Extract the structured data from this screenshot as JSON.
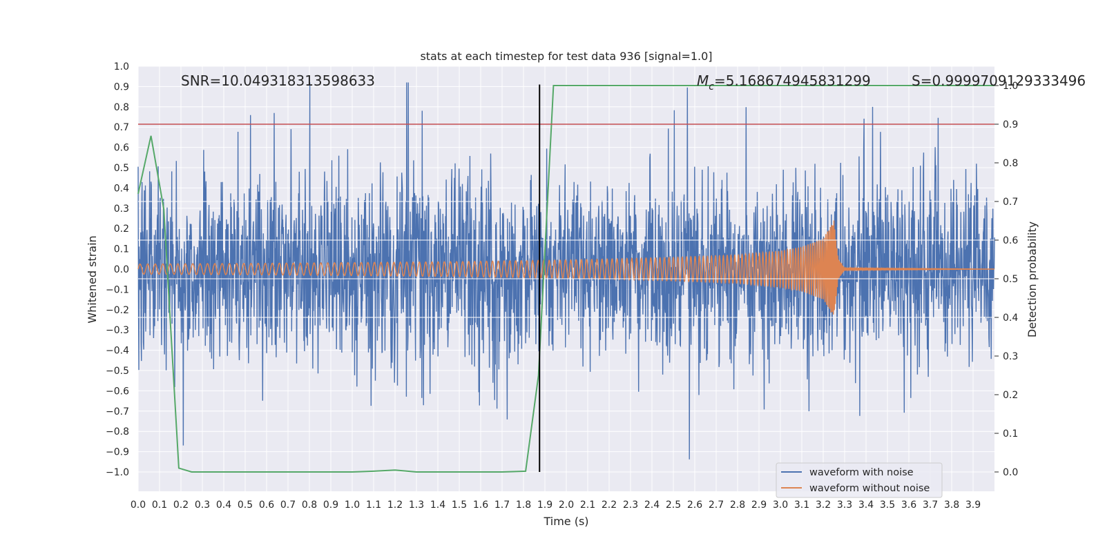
{
  "chart_data": {
    "type": "line",
    "title": "stats at each timestep for test data 936 [signal=1.0]",
    "xlabel": "Time (s)",
    "ylabel": "Whitened strain",
    "y2label": "Detection probability",
    "xlim": [
      0.0,
      4.0
    ],
    "ylim": [
      -1.09,
      1.0
    ],
    "y2lim": [
      -0.05,
      1.0
    ],
    "xticks": [
      "0.0",
      "0.1",
      "0.2",
      "0.3",
      "0.4",
      "0.5",
      "0.6",
      "0.7",
      "0.8",
      "0.9",
      "1.0",
      "1.1",
      "1.2",
      "1.3",
      "1.4",
      "1.5",
      "1.6",
      "1.7",
      "1.8",
      "1.9",
      "2.0",
      "2.1",
      "2.2",
      "2.3",
      "2.4",
      "2.5",
      "2.6",
      "2.7",
      "2.8",
      "2.9",
      "3.0",
      "3.1",
      "3.2",
      "3.3",
      "3.4",
      "3.5",
      "3.6",
      "3.7",
      "3.8",
      "3.9"
    ],
    "yticks": [
      "1.0",
      "0.9",
      "0.8",
      "0.7",
      "0.6",
      "0.5",
      "0.4",
      "0.3",
      "0.2",
      "0.1",
      "0.0",
      "−0.1",
      "−0.2",
      "−0.3",
      "−0.4",
      "−0.5",
      "−0.6",
      "−0.7",
      "−0.8",
      "−0.9",
      "−1.0"
    ],
    "y2ticks": [
      "1.0",
      "0.9",
      "0.8",
      "0.7",
      "0.6",
      "0.5",
      "0.4",
      "0.3",
      "0.2",
      "0.1",
      "0.0"
    ],
    "grid": true,
    "legend_position": "bottom-right",
    "annotations": {
      "snr": "SNR=10.049318313598633",
      "mc_symbol": "M",
      "mc_sub": "c",
      "mc_value": "=5.168674945831299",
      "s": "S=0.9999709129333496"
    },
    "colors": {
      "noisy": "#4c72b0",
      "clean": "#dd8452",
      "prob": "#55a868",
      "threshold": "#c44e52",
      "vline": "#000000",
      "background": "#eaeaf2",
      "grid": "#ffffff"
    },
    "series": [
      {
        "name": "waveform with noise",
        "axis": "left",
        "description": "noisy whitened strain, roughly within -0.5..0.5 with spikes to ~0.9 and down to -1.0"
      },
      {
        "name": "waveform without noise",
        "axis": "left",
        "description": "chirp signal with growing amplitude, merger at ~3.26 s, then ringdown to 0",
        "envelope_x": [
          0.0,
          0.5,
          1.0,
          1.5,
          2.0,
          2.5,
          2.8,
          3.0,
          3.1,
          3.2,
          3.25,
          3.27,
          3.3,
          4.0
        ],
        "envelope_y": [
          0.025,
          0.028,
          0.032,
          0.037,
          0.045,
          0.058,
          0.07,
          0.09,
          0.11,
          0.15,
          0.24,
          0.05,
          0.005,
          0.0
        ]
      },
      {
        "name": "detection probability",
        "axis": "right",
        "x": [
          0.0,
          0.06,
          0.12,
          0.19,
          0.25,
          0.5,
          1.0,
          1.1,
          1.2,
          1.3,
          1.5,
          1.7,
          1.81,
          1.87,
          1.94,
          4.0
        ],
        "y": [
          0.72,
          0.87,
          0.68,
          0.01,
          0.0,
          0.0,
          0.0,
          0.002,
          0.005,
          0.0,
          0.0,
          0.0,
          0.002,
          0.25,
          1.0,
          1.0
        ]
      }
    ],
    "threshold_line": {
      "axis": "right",
      "y": 0.9
    },
    "vertical_line": {
      "x": 1.875,
      "y_from": -1.0,
      "y_to": 0.91
    },
    "hidden_hlines_right": [
      0.4,
      0.5,
      0.6,
      0.7
    ]
  }
}
